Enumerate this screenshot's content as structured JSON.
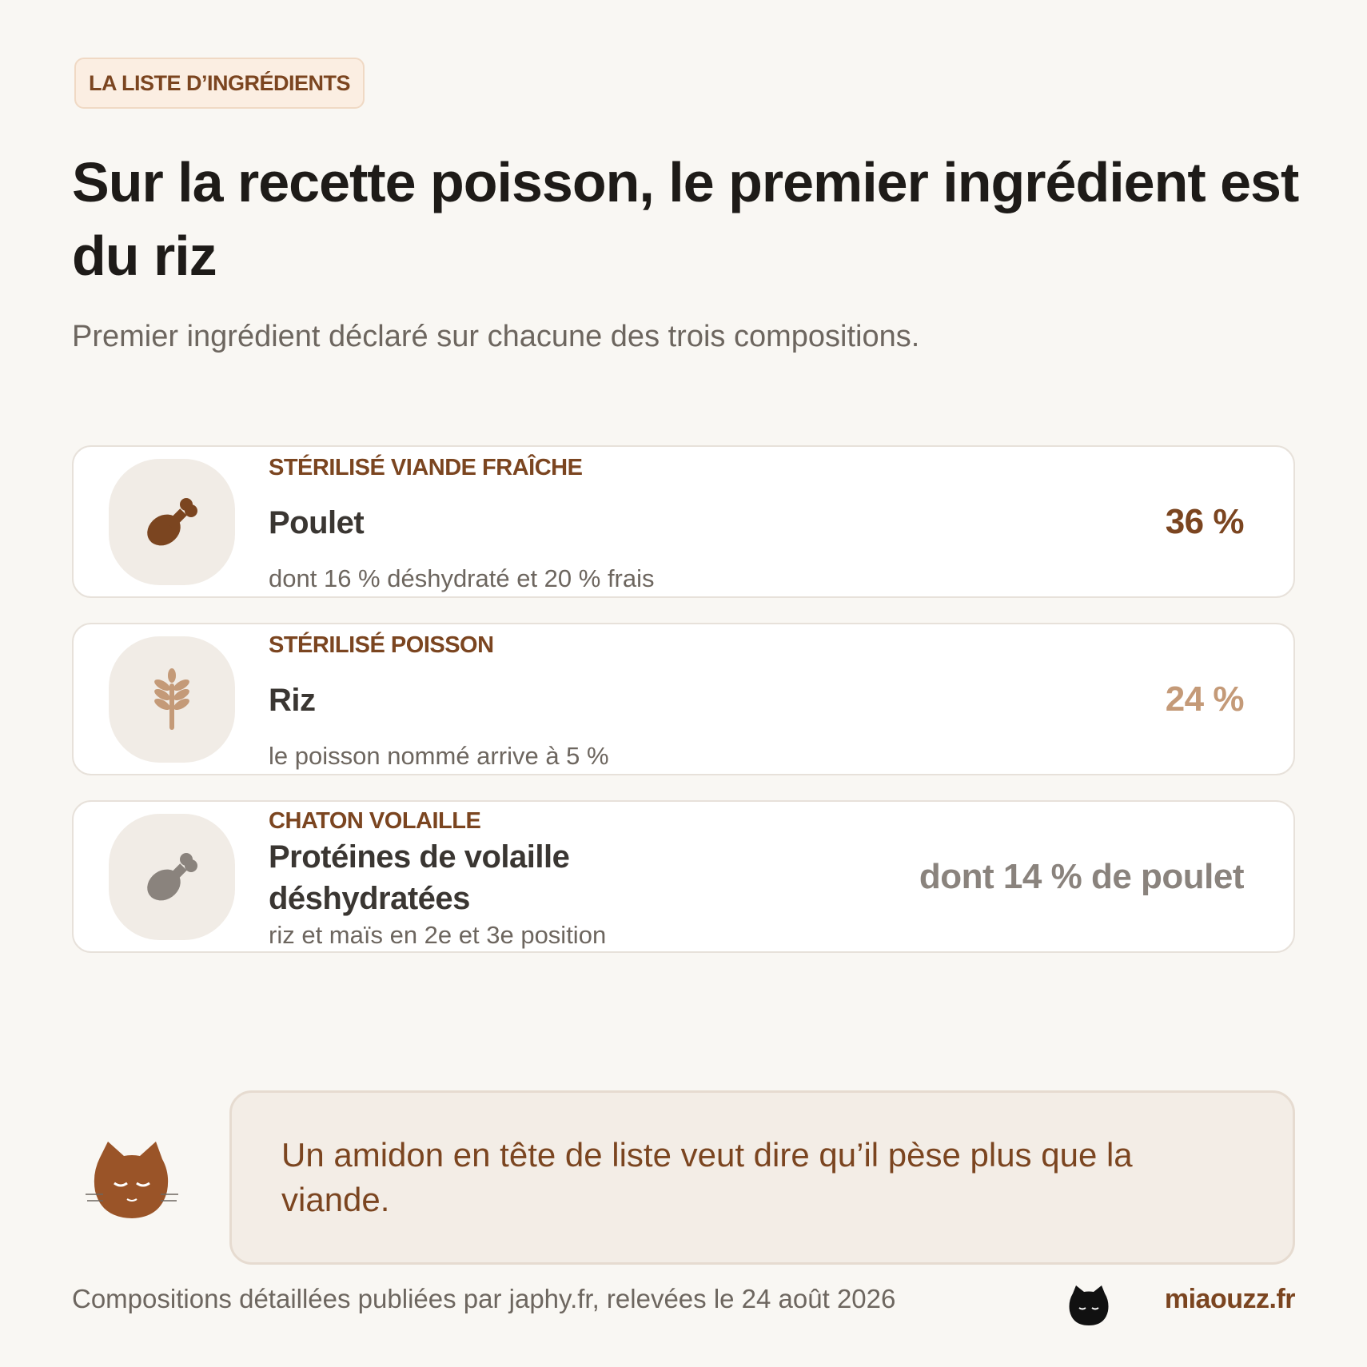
{
  "header": {
    "badge": "LA LISTE D’INGRÉDIENTS",
    "title": "Sur la recette poisson, le premier ingrédient est du riz",
    "subtitle": "Premier ingrédient déclaré sur chacune des trois compositions."
  },
  "items": [
    {
      "category": "STÉRILISÉ VIANDE FRAÎCHE",
      "name": "Poulet",
      "detail": "dont 16 % déshydraté et 20 % frais",
      "value": "36 %"
    },
    {
      "category": "STÉRILISÉ POISSON",
      "name": "Riz",
      "detail": "le poisson nommé arrive à 5 %",
      "value": "24 %"
    },
    {
      "category": "CHATON VOLAILLE",
      "name": "Protéines de volaille déshydratées",
      "detail": "riz et maïs en 2e et 3e position",
      "value": "dont 14 % de poulet"
    }
  ],
  "note": "Un amidon en tête de liste veut dire qu’il pèse plus que la viande.",
  "footer": {
    "source": "Compositions détaillées publiées par japhy.fr, relevées le 24 août 2026",
    "brand": "miaouzz.fr"
  }
}
